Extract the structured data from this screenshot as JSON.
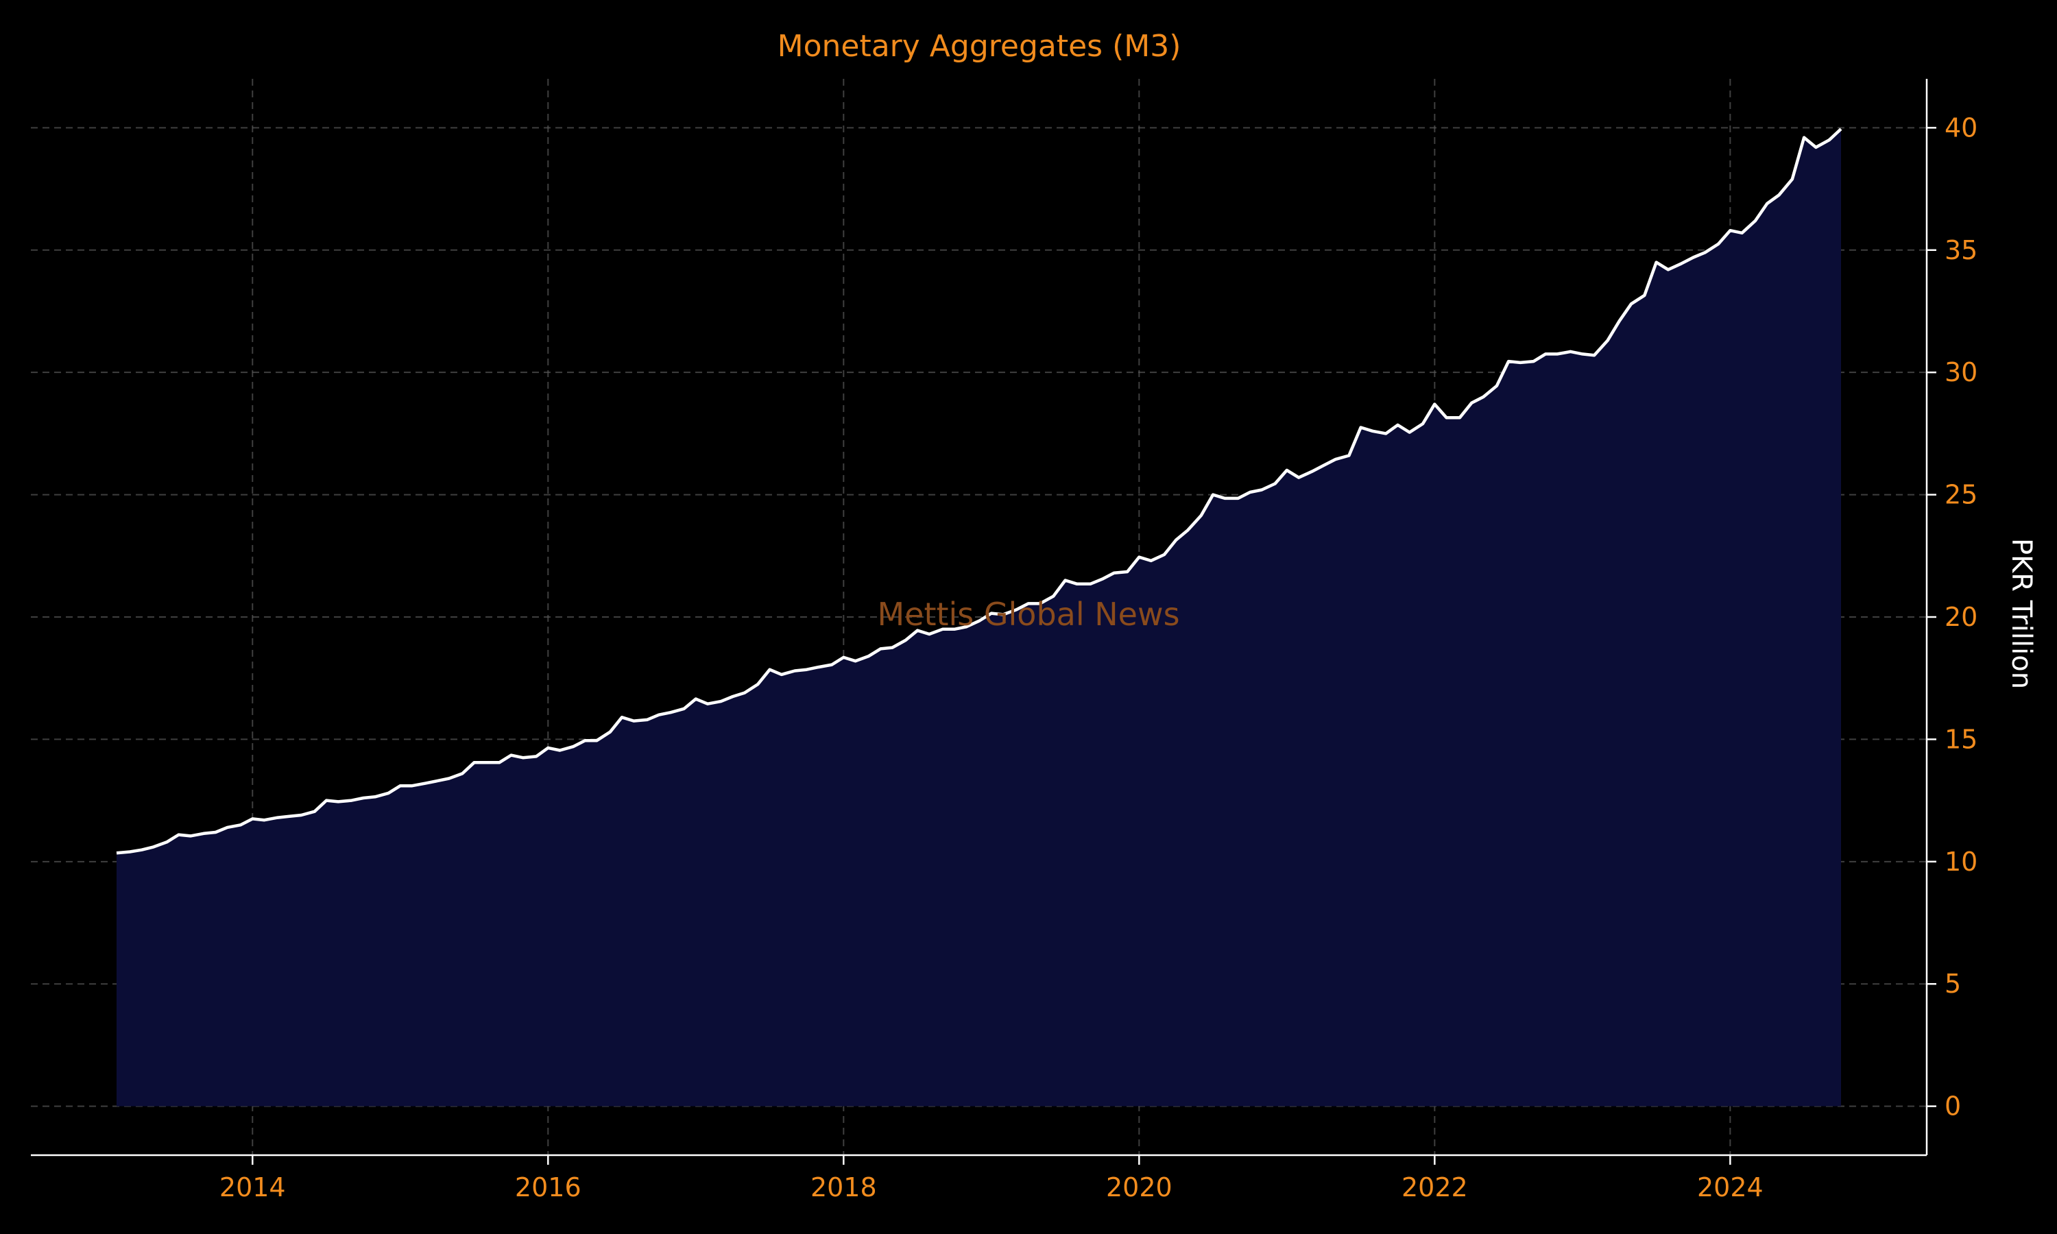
{
  "chart_data": {
    "type": "area",
    "title": "Monetary Aggregates (M3)",
    "ylabel": "PKR Trillion",
    "xlabel": "",
    "xlim": [
      2012.5,
      2025.33
    ],
    "ylim": [
      -2,
      42
    ],
    "x_ticks": [
      2014,
      2016,
      2018,
      2020,
      2022,
      2024
    ],
    "y_ticks": [
      0,
      5,
      10,
      15,
      20,
      25,
      30,
      35,
      40
    ],
    "y_axis_side": "right",
    "grid": true,
    "watermark": "Mettis Global News",
    "colors": {
      "background": "#000000",
      "line": "#ffffff",
      "fill": "#0b0d36",
      "text": "#f28c1e",
      "grid": "#5a5a5a",
      "watermark": "#8a4b1c"
    },
    "series": [
      {
        "x": [
          2013.08,
          2013.17,
          2013.25,
          2013.33,
          2013.42,
          2013.5,
          2013.58,
          2013.67,
          2013.75,
          2013.83,
          2013.92,
          2014.0,
          2014.08,
          2014.17,
          2014.25,
          2014.33,
          2014.42,
          2014.5,
          2014.58,
          2014.67,
          2014.75,
          2014.83,
          2014.92,
          2015.0,
          2015.08,
          2015.17,
          2015.25,
          2015.33,
          2015.42,
          2015.5,
          2015.58,
          2015.67,
          2015.75,
          2015.83,
          2015.92,
          2016.0,
          2016.08,
          2016.17,
          2016.25,
          2016.33,
          2016.42,
          2016.5,
          2016.58,
          2016.67,
          2016.75,
          2016.83,
          2016.92,
          2017.0,
          2017.08,
          2017.17,
          2017.25,
          2017.33,
          2017.42,
          2017.5,
          2017.58,
          2017.67,
          2017.75,
          2017.83,
          2017.92,
          2018.0,
          2018.08,
          2018.17,
          2018.25,
          2018.33,
          2018.42,
          2018.5,
          2018.58,
          2018.67,
          2018.75,
          2018.83,
          2018.92,
          2019.0,
          2019.08,
          2019.17,
          2019.25,
          2019.33,
          2019.42,
          2019.5,
          2019.58,
          2019.67,
          2019.75,
          2019.83,
          2019.92,
          2020.0,
          2020.08,
          2020.17,
          2020.25,
          2020.33,
          2020.42,
          2020.5,
          2020.58,
          2020.67,
          2020.75,
          2020.83,
          2020.92,
          2021.0,
          2021.08,
          2021.17,
          2021.25,
          2021.33,
          2021.42,
          2021.5,
          2021.58,
          2021.67,
          2021.75,
          2021.83,
          2021.92,
          2022.0,
          2022.08,
          2022.17,
          2022.25,
          2022.33,
          2022.42,
          2022.5,
          2022.58,
          2022.67,
          2022.75,
          2022.83,
          2022.92,
          2023.0,
          2023.08,
          2023.17,
          2023.25,
          2023.33,
          2023.42,
          2023.5,
          2023.58,
          2023.67,
          2023.75,
          2023.83,
          2023.92,
          2024.0,
          2024.08,
          2024.17,
          2024.25,
          2024.33,
          2024.42,
          2024.5,
          2024.58,
          2024.67,
          2024.75
        ],
        "y": [
          10.35,
          10.4,
          10.48,
          10.6,
          10.8,
          11.1,
          11.05,
          11.15,
          11.2,
          11.4,
          11.5,
          11.75,
          11.7,
          11.8,
          11.85,
          11.9,
          12.05,
          12.5,
          12.45,
          12.5,
          12.6,
          12.65,
          12.8,
          13.1,
          13.1,
          13.2,
          13.3,
          13.4,
          13.6,
          14.05,
          14.05,
          14.05,
          14.35,
          14.25,
          14.3,
          14.65,
          14.55,
          14.7,
          14.95,
          14.95,
          15.3,
          15.9,
          15.75,
          15.8,
          16.0,
          16.1,
          16.25,
          16.65,
          16.45,
          16.55,
          16.75,
          16.9,
          17.25,
          17.85,
          17.65,
          17.8,
          17.85,
          17.95,
          18.05,
          18.35,
          18.2,
          18.4,
          18.7,
          18.75,
          19.05,
          19.45,
          19.3,
          19.5,
          19.5,
          19.6,
          19.85,
          20.15,
          20.1,
          20.3,
          20.55,
          20.55,
          20.85,
          21.5,
          21.35,
          21.35,
          21.55,
          21.8,
          21.85,
          22.45,
          22.3,
          22.55,
          23.15,
          23.55,
          24.15,
          25.0,
          24.85,
          24.85,
          25.1,
          25.2,
          25.45,
          26.0,
          25.7,
          25.95,
          26.2,
          26.45,
          26.6,
          27.75,
          27.6,
          27.5,
          27.85,
          27.55,
          27.9,
          28.7,
          28.15,
          28.15,
          28.75,
          29.0,
          29.45,
          30.45,
          30.4,
          30.45,
          30.75,
          30.75,
          30.85,
          30.75,
          30.7,
          31.3,
          32.1,
          32.8,
          33.15,
          34.5,
          34.2,
          34.45,
          34.7,
          34.9,
          35.25,
          35.8,
          35.7,
          36.2,
          36.9,
          37.25,
          37.9,
          39.6,
          39.2,
          39.5,
          39.95
        ]
      }
    ]
  }
}
